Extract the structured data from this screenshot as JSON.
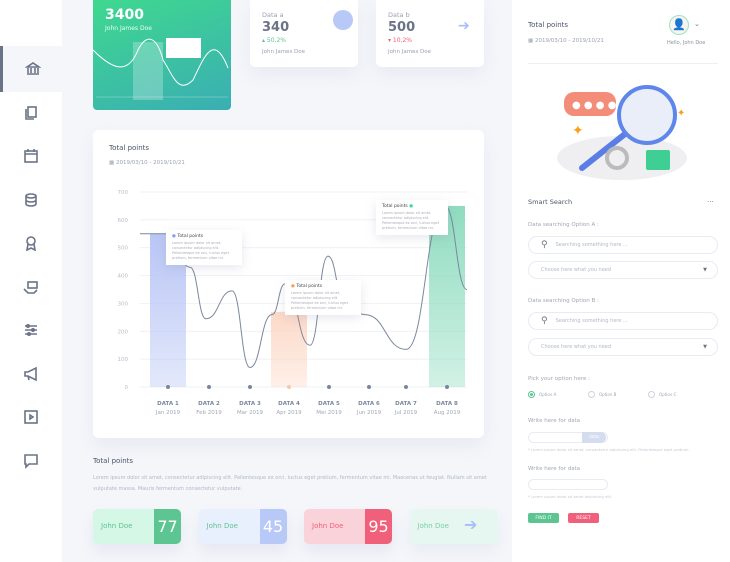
{
  "sidebar": {
    "items": [
      {
        "icon": "bank-icon",
        "active": true
      },
      {
        "icon": "documents-icon"
      },
      {
        "icon": "calendar-icon"
      },
      {
        "icon": "coins-icon"
      },
      {
        "icon": "award-icon"
      },
      {
        "icon": "money-hand-icon"
      },
      {
        "icon": "sliders-icon"
      },
      {
        "icon": "megaphone-icon"
      },
      {
        "icon": "film-icon"
      },
      {
        "icon": "chat-icon"
      }
    ]
  },
  "hero": {
    "value": "3400",
    "name": "John James Doe"
  },
  "stats": [
    {
      "label": "Data a",
      "value": "340",
      "change": "50,2%",
      "trend": "up",
      "name": "John James Doe",
      "color": "#5dc592"
    },
    {
      "label": "Data b",
      "value": "500",
      "change": "10,2%",
      "trend": "down",
      "name": "John James Doe",
      "color": "#f0607a"
    }
  ],
  "chart": {
    "title": "Total points",
    "date_range": "2019/03/10 - 2019/10/21",
    "tooltip_title": "Total points",
    "tooltip_text": "Lorem ipsum dolor sit amet, consectetur adipiscing elit. Pellentesque ex orci, luctus eget pretium, fermentum vitae mi."
  },
  "chart_data": {
    "type": "bar",
    "ylim": [
      0,
      700
    ],
    "yticks": [
      0,
      100,
      200,
      300,
      400,
      500,
      600,
      700
    ],
    "grid": true,
    "categories": [
      "DATA 1",
      "DATA 2",
      "DATA 3",
      "DATA 4",
      "DATA 5",
      "DATA 6",
      "DATA 7",
      "DATA 8"
    ],
    "sublabels": [
      "Jan 2019",
      "Feb 2019",
      "Mar 2019",
      "Apr 2019",
      "Mei 2019",
      "Jun 2019",
      "Jul 2019",
      "Aug 2019"
    ],
    "bars": [
      550,
      null,
      null,
      270,
      null,
      null,
      null,
      650
    ],
    "bar_colors": [
      "#b9c6f5",
      null,
      null,
      "#fcd9c8",
      null,
      null,
      null,
      "#8fdcc0"
    ],
    "line": [
      550,
      245,
      70,
      270,
      470,
      260,
      135,
      650
    ]
  },
  "summary": {
    "title": "Total points",
    "text": "Lorem ipsum dolor sit amet, consectetur adipiscing elit. Pellentesque ex orci, luctus eget pretium, fermentum vitae mi. Maecenas ut feugiat. Nullam sit amet vulputate massa. Mauris fermentum consectetur vulputate.",
    "cards": [
      {
        "name": "John Doe",
        "value": "77",
        "bg": "#d4f7e6",
        "accent": "#5dc592"
      },
      {
        "name": "John Doe",
        "value": "45",
        "bg": "#e8effd",
        "accent": "#b9c9f7"
      },
      {
        "name": "John Doe",
        "value": "95",
        "bg": "#f9d3d9",
        "accent": "#f0607a"
      },
      {
        "name": "John Doe",
        "value": "",
        "bg": "#e2f8ee",
        "accent": ""
      }
    ]
  },
  "right": {
    "title": "Total points",
    "date_range": "2019/03/10 - 2019/10/21",
    "greeting": "Hello, John Doe",
    "smart_search": "Smart Search",
    "more": "...",
    "optA": "Data searching Option A :",
    "optB": "Data searching Option B :",
    "search_placeholder": "Searching something here ...",
    "select_placeholder": "Choose here what you need",
    "pick": "Pick your option here :",
    "radios": [
      "Option A",
      "Option B",
      "Option C"
    ],
    "radio_selected": 0,
    "write1": "Write here for data",
    "data_btn": "data",
    "hint1": "* Lorem ipsum dolor sit amet, consectetur adipiscing elit. Pellentesque eget pretium.",
    "write2": "Write here for data",
    "hint2": "* Lorem ipsum dolor sit amet adipiscing elit.",
    "find": "FIND IT",
    "reset": "RESET"
  }
}
